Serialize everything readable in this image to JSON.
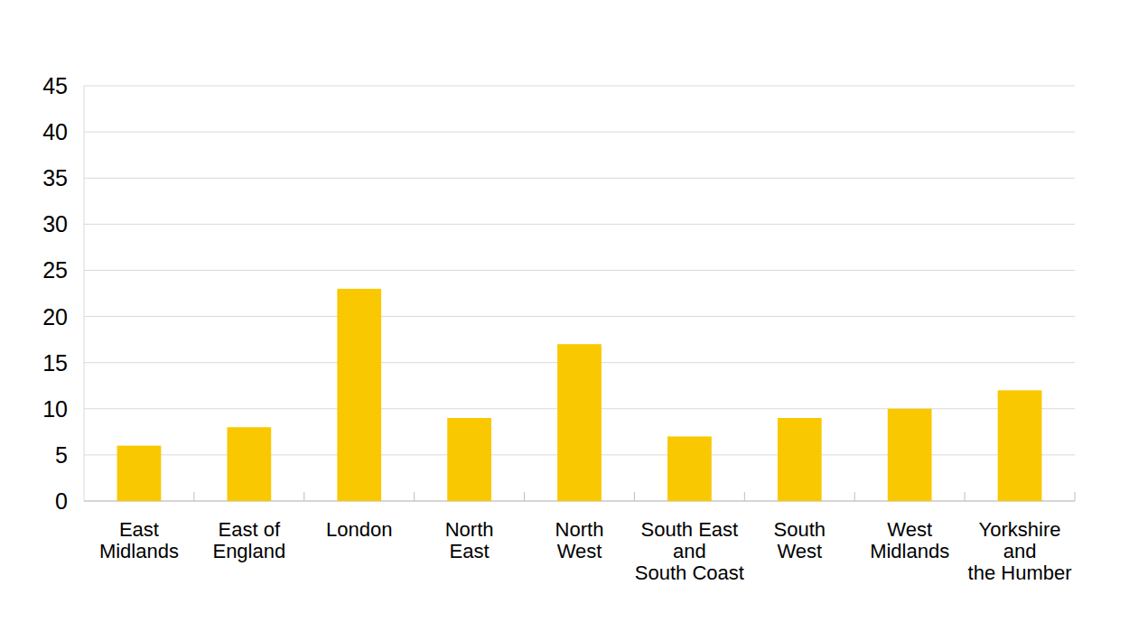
{
  "chart_data": {
    "type": "bar",
    "categories": [
      "East\nMidlands",
      "East of\nEngland",
      "London",
      "North\nEast",
      "North\nWest",
      "South East\nand\nSouth Coast",
      "South\nWest",
      "West\nMidlands",
      "Yorkshire\nand\nthe Humber"
    ],
    "values": [
      6,
      8,
      23,
      9,
      17,
      7,
      9,
      10,
      12
    ],
    "color": "#f9c800",
    "ylim": [
      0,
      45
    ],
    "yticks": [
      0,
      5,
      10,
      15,
      20,
      25,
      30,
      35,
      40,
      45
    ],
    "grid": true
  }
}
